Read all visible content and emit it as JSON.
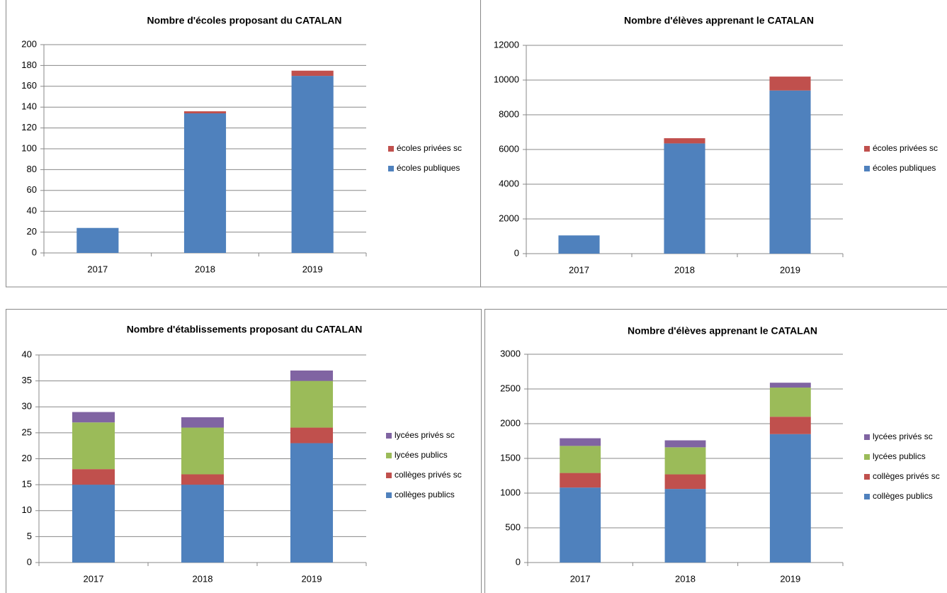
{
  "chart_data": [
    {
      "type": "bar",
      "title": "Nombre d'écoles proposant du CATALAN",
      "categories": [
        "2017",
        "2018",
        "2019"
      ],
      "series": [
        {
          "name": "écoles publiques",
          "color": "#4f81bd",
          "values": [
            24,
            134,
            170
          ]
        },
        {
          "name": "écoles privées sc",
          "color": "#c0504d",
          "values": [
            0,
            2,
            5
          ]
        }
      ],
      "ylim": [
        0,
        200
      ],
      "yticks": [
        0,
        20,
        40,
        60,
        80,
        100,
        120,
        140,
        160,
        180,
        200
      ],
      "grid": true,
      "stacked": true,
      "legend": "right"
    },
    {
      "type": "bar",
      "title": "Nombre d'élèves apprenant le CATALAN",
      "categories": [
        "2017",
        "2018",
        "2019"
      ],
      "series": [
        {
          "name": "écoles publiques",
          "color": "#4f81bd",
          "values": [
            1050,
            6350,
            9400
          ]
        },
        {
          "name": "écoles privées sc",
          "color": "#c0504d",
          "values": [
            0,
            300,
            800
          ]
        }
      ],
      "ylim": [
        0,
        12000
      ],
      "yticks": [
        0,
        2000,
        4000,
        6000,
        8000,
        10000,
        12000
      ],
      "grid": true,
      "stacked": true,
      "legend": "right"
    },
    {
      "type": "bar",
      "title": "Nombre d'établissements proposant du CATALAN",
      "categories": [
        "2017",
        "2018",
        "2019"
      ],
      "series": [
        {
          "name": "collèges publics",
          "color": "#4f81bd",
          "values": [
            15,
            15,
            23
          ]
        },
        {
          "name": "collèges privés sc",
          "color": "#c0504d",
          "values": [
            3,
            2,
            3
          ]
        },
        {
          "name": "lycées publics",
          "color": "#9bbb59",
          "values": [
            9,
            9,
            9
          ]
        },
        {
          "name": "lycées privés sc",
          "color": "#8064a2",
          "values": [
            2,
            2,
            2
          ]
        }
      ],
      "ylim": [
        0,
        40
      ],
      "yticks": [
        0,
        5,
        10,
        15,
        20,
        25,
        30,
        35,
        40
      ],
      "grid": true,
      "stacked": true,
      "legend": "right"
    },
    {
      "type": "bar",
      "title": "Nombre d'élèves apprenant le CATALAN",
      "categories": [
        "2017",
        "2018",
        "2019"
      ],
      "series": [
        {
          "name": "collèges publics",
          "color": "#4f81bd",
          "values": [
            1080,
            1060,
            1850
          ]
        },
        {
          "name": "collèges privés sc",
          "color": "#c0504d",
          "values": [
            210,
            210,
            250
          ]
        },
        {
          "name": "lycées publics",
          "color": "#9bbb59",
          "values": [
            390,
            390,
            420
          ]
        },
        {
          "name": "lycées privés sc",
          "color": "#8064a2",
          "values": [
            110,
            100,
            70
          ]
        }
      ],
      "ylim": [
        0,
        3000
      ],
      "yticks": [
        0,
        500,
        1000,
        1500,
        2000,
        2500,
        3000
      ],
      "grid": true,
      "stacked": true,
      "legend": "right"
    }
  ]
}
